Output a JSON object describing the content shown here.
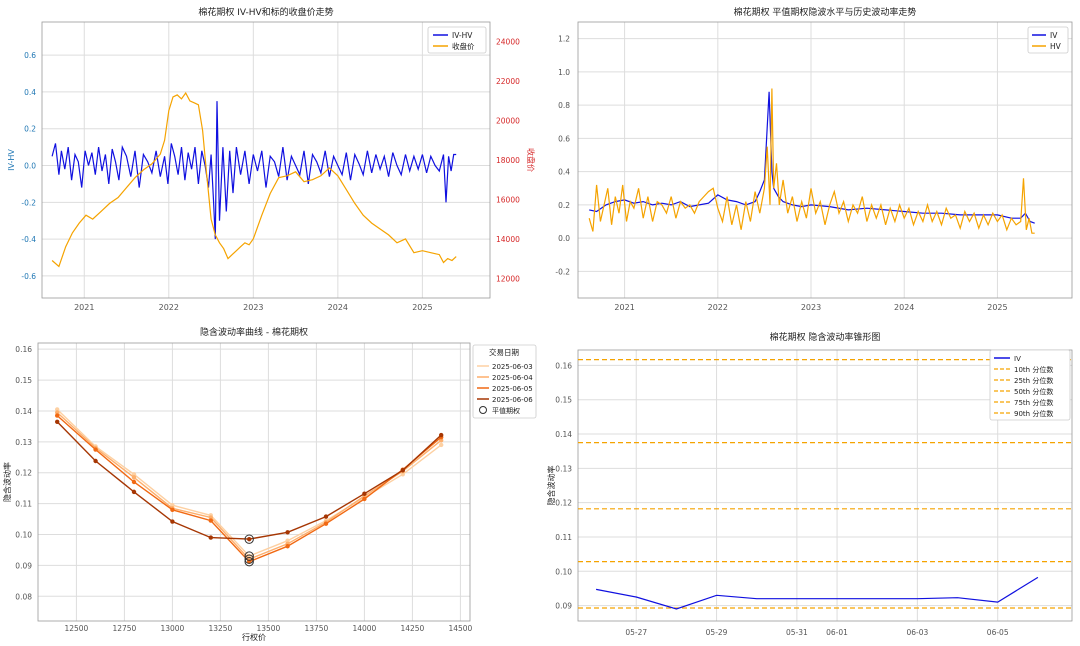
{
  "chart_data": [
    {
      "type": "line",
      "title": "棉花期权 IV-HV和标的收盘价走势",
      "xlabel": "",
      "ylabel": "IV-HV",
      "ylabel_right": "收盘价",
      "ylim": [
        -0.72,
        0.78
      ],
      "ylim_right": [
        11000,
        25000
      ],
      "yticks": [
        -0.6,
        -0.4,
        -0.2,
        0.0,
        0.2,
        0.4,
        0.6
      ],
      "yticks_labels": [
        "-0.6",
        "-0.4",
        "-0.2",
        "0.0",
        "0.2",
        "0.4",
        "0.6"
      ],
      "yticks_right": [
        12000,
        14000,
        16000,
        18000,
        20000,
        22000,
        24000
      ],
      "yticks_right_labels": [
        "12000",
        "14000",
        "16000",
        "18000",
        "20000",
        "22000",
        "24000"
      ],
      "xlim": [
        2020.5,
        2025.8
      ],
      "xticks": [
        2021,
        2022,
        2023,
        2024,
        2025
      ],
      "xticks_labels": [
        "2021",
        "2022",
        "2023",
        "2024",
        "2025"
      ],
      "grid": true,
      "legend": "top-right",
      "series": [
        {
          "name": "IV-HV",
          "color": "#1010e0",
          "axis": "left",
          "x": [
            2020.62,
            2020.66,
            2020.7,
            2020.73,
            2020.77,
            2020.81,
            2020.85,
            2020.89,
            2020.93,
            2020.97,
            2021.01,
            2021.05,
            2021.09,
            2021.13,
            2021.17,
            2021.21,
            2021.25,
            2021.29,
            2021.33,
            2021.37,
            2021.41,
            2021.45,
            2021.5,
            2021.55,
            2021.6,
            2021.65,
            2021.7,
            2021.75,
            2021.8,
            2021.85,
            2021.9,
            2021.95,
            2021.99,
            2022.03,
            2022.07,
            2022.11,
            2022.15,
            2022.19,
            2022.23,
            2022.27,
            2022.31,
            2022.35,
            2022.39,
            2022.43,
            2022.47,
            2022.5,
            2022.53,
            2022.55,
            2022.57,
            2022.6,
            2022.64,
            2022.68,
            2022.72,
            2022.76,
            2022.8,
            2022.85,
            2022.9,
            2022.95,
            2023.0,
            2023.05,
            2023.1,
            2023.15,
            2023.2,
            2023.25,
            2023.3,
            2023.35,
            2023.4,
            2023.45,
            2023.5,
            2023.55,
            2023.6,
            2023.65,
            2023.7,
            2023.75,
            2023.8,
            2023.85,
            2023.9,
            2023.95,
            2024.0,
            2024.05,
            2024.1,
            2024.15,
            2024.2,
            2024.25,
            2024.3,
            2024.35,
            2024.4,
            2024.45,
            2024.5,
            2024.55,
            2024.6,
            2024.65,
            2024.7,
            2024.75,
            2024.8,
            2024.85,
            2024.9,
            2024.95,
            2025.0,
            2025.05,
            2025.1,
            2025.15,
            2025.2,
            2025.25,
            2025.28,
            2025.31,
            2025.34,
            2025.37,
            2025.4
          ],
          "y": [
            0.05,
            0.12,
            -0.05,
            0.08,
            -0.02,
            0.1,
            -0.08,
            0.06,
            0.02,
            -0.12,
            0.08,
            0.0,
            0.07,
            -0.05,
            0.1,
            -0.03,
            0.06,
            -0.1,
            0.09,
            0.02,
            -0.08,
            0.1,
            0.05,
            -0.06,
            0.08,
            -0.12,
            0.06,
            0.02,
            -0.04,
            0.08,
            -0.06,
            0.05,
            -0.1,
            0.12,
            0.05,
            -0.05,
            0.1,
            -0.08,
            0.07,
            -0.02,
            0.1,
            -0.1,
            0.08,
            0.0,
            -0.12,
            0.06,
            -0.2,
            -0.4,
            0.35,
            -0.3,
            0.1,
            -0.25,
            0.08,
            -0.15,
            0.1,
            -0.05,
            0.08,
            -0.1,
            0.06,
            -0.03,
            0.08,
            -0.12,
            0.05,
            0.02,
            -0.06,
            0.1,
            -0.08,
            0.05,
            0.0,
            -0.05,
            0.08,
            -0.1,
            0.06,
            0.02,
            -0.04,
            0.08,
            -0.06,
            0.05,
            0.0,
            -0.05,
            0.07,
            -0.08,
            0.06,
            0.01,
            -0.05,
            0.08,
            -0.04,
            0.06,
            -0.02,
            0.05,
            -0.06,
            0.07,
            0.0,
            -0.05,
            0.06,
            -0.03,
            0.05,
            -0.02,
            0.06,
            -0.04,
            0.05,
            0.0,
            -0.03,
            0.06,
            -0.2,
            0.05,
            -0.03,
            0.06,
            0.06
          ]
        },
        {
          "name": "收盘价",
          "color": "#f5a300",
          "axis": "right",
          "x": [
            2020.62,
            2020.7,
            2020.78,
            2020.86,
            2020.94,
            2021.02,
            2021.1,
            2021.2,
            2021.3,
            2021.4,
            2021.5,
            2021.6,
            2021.7,
            2021.8,
            2021.9,
            2021.95,
            2022.0,
            2022.05,
            2022.1,
            2022.15,
            2022.2,
            2022.25,
            2022.3,
            2022.35,
            2022.4,
            2022.45,
            2022.5,
            2022.55,
            2022.6,
            2022.65,
            2022.7,
            2022.75,
            2022.8,
            2022.85,
            2022.9,
            2022.95,
            2023.0,
            2023.1,
            2023.2,
            2023.3,
            2023.4,
            2023.5,
            2023.6,
            2023.7,
            2023.8,
            2023.9,
            2024.0,
            2024.1,
            2024.2,
            2024.3,
            2024.4,
            2024.5,
            2024.6,
            2024.7,
            2024.8,
            2024.9,
            2025.0,
            2025.1,
            2025.2,
            2025.25,
            2025.3,
            2025.35,
            2025.4
          ],
          "y": [
            12900,
            12600,
            13600,
            14300,
            14800,
            15200,
            15000,
            15400,
            15800,
            16100,
            16600,
            17100,
            17500,
            17800,
            18300,
            19000,
            20500,
            21200,
            21300,
            21100,
            21400,
            21000,
            20900,
            20800,
            19500,
            17200,
            15000,
            14200,
            13800,
            13500,
            13000,
            13200,
            13400,
            13600,
            13800,
            13700,
            14000,
            15200,
            16300,
            17100,
            17200,
            17400,
            16900,
            17000,
            17200,
            17600,
            17200,
            16500,
            15800,
            15200,
            14800,
            14500,
            14200,
            13800,
            14000,
            13300,
            13400,
            13300,
            13200,
            12800,
            13000,
            12900,
            13100
          ]
        }
      ]
    },
    {
      "type": "line",
      "title": "棉花期权 平值期权隐波水平与历史波动率走势",
      "xlabel": "",
      "ylabel": "",
      "ylim": [
        -0.36,
        1.3
      ],
      "yticks": [
        -0.2,
        0.0,
        0.2,
        0.4,
        0.6,
        0.8,
        1.0,
        1.2
      ],
      "yticks_labels": [
        "-0.2",
        "0.0",
        "0.2",
        "0.4",
        "0.6",
        "0.8",
        "1.0",
        "1.2"
      ],
      "xlim": [
        2020.5,
        2025.8
      ],
      "xticks": [
        2021,
        2022,
        2023,
        2024,
        2025
      ],
      "xticks_labels": [
        "2021",
        "2022",
        "2023",
        "2024",
        "2025"
      ],
      "grid": true,
      "legend": "top-right",
      "series": [
        {
          "name": "IV",
          "color": "#1010e0",
          "x": [
            2020.62,
            2020.7,
            2020.8,
            2020.9,
            2021.0,
            2021.1,
            2021.2,
            2021.3,
            2021.4,
            2021.5,
            2021.6,
            2021.7,
            2021.8,
            2021.9,
            2022.0,
            2022.1,
            2022.2,
            2022.3,
            2022.4,
            2022.45,
            2022.5,
            2022.55,
            2022.58,
            2022.6,
            2022.65,
            2022.7,
            2022.8,
            2022.9,
            2023.0,
            2023.2,
            2023.4,
            2023.6,
            2023.8,
            2024.0,
            2024.2,
            2024.4,
            2024.6,
            2024.8,
            2025.0,
            2025.15,
            2025.25,
            2025.3,
            2025.35,
            2025.4
          ],
          "y": [
            0.17,
            0.16,
            0.2,
            0.22,
            0.23,
            0.21,
            0.22,
            0.2,
            0.21,
            0.2,
            0.22,
            0.19,
            0.2,
            0.21,
            0.26,
            0.23,
            0.22,
            0.2,
            0.22,
            0.28,
            0.35,
            0.88,
            0.4,
            0.3,
            0.25,
            0.22,
            0.2,
            0.19,
            0.2,
            0.19,
            0.17,
            0.18,
            0.17,
            0.16,
            0.15,
            0.15,
            0.14,
            0.14,
            0.14,
            0.12,
            0.12,
            0.15,
            0.1,
            0.09
          ]
        },
        {
          "name": "HV",
          "color": "#f5a300",
          "x": [
            2020.62,
            2020.66,
            2020.7,
            2020.74,
            2020.78,
            2020.82,
            2020.86,
            2020.9,
            2020.94,
            2020.98,
            2021.02,
            2021.06,
            2021.1,
            2021.15,
            2021.2,
            2021.25,
            2021.3,
            2021.35,
            2021.4,
            2021.45,
            2021.5,
            2021.55,
            2021.6,
            2021.65,
            2021.7,
            2021.75,
            2021.8,
            2021.85,
            2021.9,
            2021.95,
            2022.0,
            2022.05,
            2022.1,
            2022.15,
            2022.2,
            2022.25,
            2022.3,
            2022.35,
            2022.4,
            2022.45,
            2022.5,
            2022.53,
            2022.56,
            2022.58,
            2022.6,
            2022.63,
            2022.66,
            2022.7,
            2022.75,
            2022.8,
            2022.85,
            2022.9,
            2022.95,
            2023.0,
            2023.05,
            2023.1,
            2023.15,
            2023.2,
            2023.25,
            2023.3,
            2023.35,
            2023.4,
            2023.45,
            2023.5,
            2023.55,
            2023.6,
            2023.65,
            2023.7,
            2023.75,
            2023.8,
            2023.85,
            2023.9,
            2023.95,
            2024.0,
            2024.05,
            2024.1,
            2024.15,
            2024.2,
            2024.25,
            2024.3,
            2024.35,
            2024.4,
            2024.45,
            2024.5,
            2024.55,
            2024.6,
            2024.65,
            2024.7,
            2024.75,
            2024.8,
            2024.85,
            2024.9,
            2024.95,
            2025.0,
            2025.05,
            2025.1,
            2025.15,
            2025.2,
            2025.25,
            2025.28,
            2025.31,
            2025.34,
            2025.37,
            2025.4
          ],
          "y": [
            0.12,
            0.04,
            0.32,
            0.1,
            0.2,
            0.3,
            0.08,
            0.25,
            0.15,
            0.32,
            0.1,
            0.22,
            0.18,
            0.3,
            0.12,
            0.25,
            0.1,
            0.22,
            0.2,
            0.15,
            0.25,
            0.12,
            0.22,
            0.18,
            0.2,
            0.15,
            0.22,
            0.25,
            0.28,
            0.3,
            0.18,
            0.1,
            0.25,
            0.08,
            0.2,
            0.05,
            0.22,
            0.1,
            0.28,
            0.15,
            0.3,
            0.55,
            0.2,
            0.9,
            0.3,
            0.45,
            0.2,
            0.35,
            0.15,
            0.25,
            0.1,
            0.22,
            0.12,
            0.3,
            0.15,
            0.22,
            0.08,
            0.2,
            0.28,
            0.15,
            0.22,
            0.1,
            0.2,
            0.15,
            0.25,
            0.1,
            0.2,
            0.12,
            0.2,
            0.08,
            0.18,
            0.1,
            0.2,
            0.12,
            0.18,
            0.08,
            0.16,
            0.1,
            0.2,
            0.1,
            0.16,
            0.08,
            0.18,
            0.12,
            0.14,
            0.06,
            0.16,
            0.1,
            0.15,
            0.06,
            0.14,
            0.08,
            0.15,
            0.1,
            0.14,
            0.05,
            0.12,
            0.08,
            0.1,
            0.36,
            0.05,
            0.12,
            0.03,
            0.03
          ]
        }
      ]
    },
    {
      "type": "line",
      "title": "隐含波动率曲线 - 棉花期权",
      "xlabel": "行权价",
      "ylabel": "隐含波动率",
      "xlim": [
        12300,
        14550
      ],
      "ylim": [
        0.072,
        0.162
      ],
      "xticks": [
        12500,
        12750,
        13000,
        13250,
        13500,
        13750,
        14000,
        14250,
        14500
      ],
      "xticks_labels": [
        "12500",
        "12750",
        "13000",
        "13250",
        "13500",
        "13750",
        "14000",
        "14250",
        "14500"
      ],
      "yticks": [
        0.08,
        0.09,
        0.1,
        0.11,
        0.12,
        0.13,
        0.14,
        0.15,
        0.16
      ],
      "yticks_labels": [
        "0.08",
        "0.09",
        "0.10",
        "0.11",
        "0.12",
        "0.13",
        "0.14",
        "0.15",
        "0.16"
      ],
      "grid": true,
      "legend_title": "交易日期",
      "legend": "outside-right",
      "atm_label": "平值期权",
      "atm_strike": 13400,
      "categories": [
        12400,
        12600,
        12800,
        13000,
        13200,
        13400,
        13600,
        13800,
        14000,
        14200,
        14400
      ],
      "series": [
        {
          "name": "2025-06-03",
          "color": "#fdd0a2",
          "values": [
            0.1405,
            0.1285,
            0.1195,
            0.1095,
            0.1062,
            0.093,
            0.098,
            0.1045,
            0.112,
            0.1195,
            0.129
          ],
          "atm": 0.093
        },
        {
          "name": "2025-06-04",
          "color": "#fdae6b",
          "values": [
            0.1395,
            0.128,
            0.1185,
            0.1085,
            0.1055,
            0.092,
            0.097,
            0.104,
            0.1125,
            0.1205,
            0.1305
          ],
          "atm": 0.092
        },
        {
          "name": "2025-06-05",
          "color": "#f16913",
          "values": [
            0.1385,
            0.1275,
            0.117,
            0.108,
            0.1045,
            0.0912,
            0.0962,
            0.1035,
            0.1115,
            0.121,
            0.1315
          ],
          "atm": 0.0912
        },
        {
          "name": "2025-06-06",
          "color": "#a63603",
          "values": [
            0.1365,
            0.1238,
            0.1138,
            0.1042,
            0.099,
            0.0985,
            0.1007,
            0.1058,
            0.1132,
            0.1208,
            0.1322
          ],
          "atm": 0.0985
        }
      ]
    },
    {
      "type": "line",
      "title": "棉花期权 隐含波动率锥形图",
      "xlabel": "",
      "ylabel": "隐含波动率",
      "ylim": [
        0.0855,
        0.1645
      ],
      "yticks": [
        0.09,
        0.1,
        0.11,
        0.12,
        0.13,
        0.14,
        0.15,
        0.16
      ],
      "yticks_labels": [
        "0.09",
        "0.10",
        "0.11",
        "0.12",
        "0.13",
        "0.14",
        "0.15",
        "0.16"
      ],
      "xlim": [
        -0.45,
        9.2
      ],
      "xtick_positions": [
        1,
        3,
        5,
        6,
        8,
        10
      ],
      "xticks_labels": [
        "05-27",
        "05-29",
        "05-31",
        "06-01",
        "06-03",
        "06-05"
      ],
      "grid": true,
      "legend": "top-right",
      "series": [
        {
          "name": "IV",
          "color": "#1010e0",
          "x": [
            "05-26",
            "05-27",
            "05-28",
            "05-29",
            "05-30",
            "06-02",
            "06-03",
            "06-04",
            "06-05",
            "06-06"
          ],
          "x_index": [
            0,
            1,
            2,
            3,
            4,
            7,
            8,
            9,
            10,
            11
          ],
          "values": [
            0.0947,
            0.0925,
            0.089,
            0.093,
            0.092,
            0.092,
            0.092,
            0.0923,
            0.091,
            0.0982
          ]
        }
      ],
      "quantiles": [
        {
          "name": "10th 分位数",
          "value": 0.0893,
          "color": "#f5a300"
        },
        {
          "name": "25th 分位数",
          "value": 0.1028,
          "color": "#f5a300"
        },
        {
          "name": "50th 分位数",
          "value": 0.1182,
          "color": "#f5a300"
        },
        {
          "name": "75th 分位数",
          "value": 0.1375,
          "color": "#f5a300"
        },
        {
          "name": "90th 分位数",
          "value": 0.1617,
          "color": "#f5a300"
        }
      ]
    }
  ]
}
